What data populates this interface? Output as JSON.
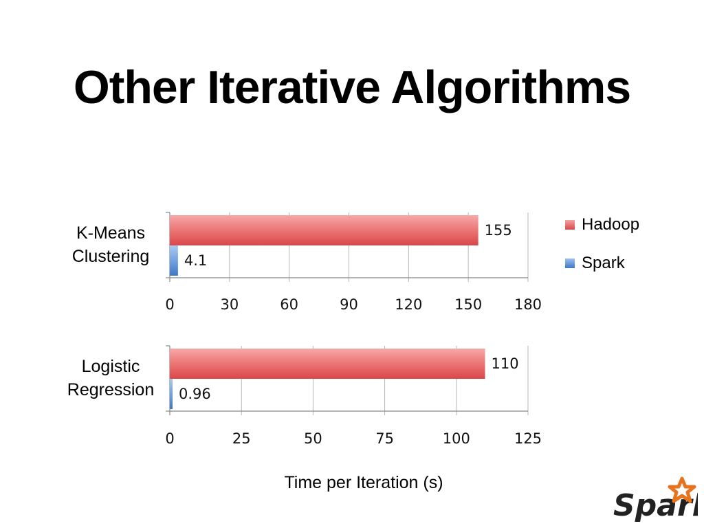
{
  "slide": {
    "title": "Other Iterative Algorithms"
  },
  "colors": {
    "hadoop": "#e0585a",
    "hadoop_light": "#f5a3a3",
    "spark": "#4a86d0",
    "spark_light": "#9cc1ee",
    "grid": "#b5b5b5"
  },
  "legend": [
    {
      "name": "Hadoop",
      "color": "#e0585a"
    },
    {
      "name": "Spark",
      "color": "#4a86d0"
    }
  ],
  "chart_data": [
    {
      "type": "bar",
      "orientation": "horizontal",
      "categories": [
        "K-Means Clustering"
      ],
      "category_lines": [
        "K-Means",
        "Clustering"
      ],
      "series": [
        {
          "name": "Hadoop",
          "values": [
            155
          ],
          "labels": [
            "155"
          ]
        },
        {
          "name": "Spark",
          "values": [
            4.1
          ],
          "labels": [
            "4.1"
          ]
        }
      ],
      "xlim": [
        0,
        180
      ],
      "xticks": [
        0,
        30,
        60,
        90,
        120,
        150,
        180
      ],
      "xtick_labels": [
        "0",
        "30",
        "60",
        "90",
        "120",
        "150",
        "180"
      ],
      "grid": true,
      "legend_position": "right"
    },
    {
      "type": "bar",
      "orientation": "horizontal",
      "categories": [
        "Logistic Regression"
      ],
      "category_lines": [
        "Logistic",
        "Regression"
      ],
      "series": [
        {
          "name": "Hadoop",
          "values": [
            110
          ],
          "labels": [
            "110"
          ]
        },
        {
          "name": "Spark",
          "values": [
            0.96
          ],
          "labels": [
            "0.96"
          ]
        }
      ],
      "xlim": [
        0,
        125
      ],
      "xticks": [
        0,
        25,
        50,
        75,
        100,
        125
      ],
      "xtick_labels": [
        "0",
        "25",
        "50",
        "75",
        "100",
        "125"
      ],
      "grid": true,
      "legend_position": "right"
    }
  ],
  "xlabel": "Time per Iteration (s)",
  "logo": {
    "text": "Spark",
    "icon": "star-icon"
  }
}
